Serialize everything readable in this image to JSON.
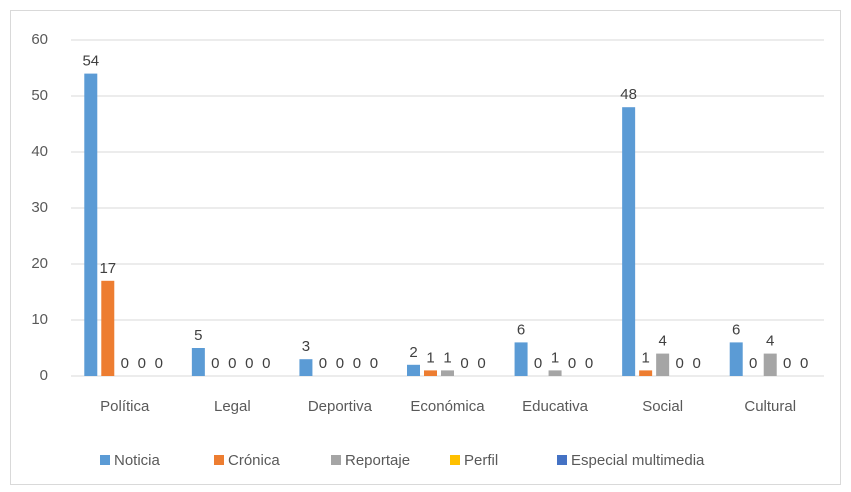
{
  "chart_data": {
    "type": "bar",
    "categories": [
      "Política",
      "Legal",
      "Deportiva",
      "Económica",
      "Educativa",
      "Social",
      "Cultural"
    ],
    "series": [
      {
        "name": "Noticia",
        "color": "#5b9bd5",
        "values": [
          54,
          5,
          3,
          2,
          6,
          48,
          6
        ]
      },
      {
        "name": "Crónica",
        "color": "#ed7d31",
        "values": [
          17,
          0,
          0,
          1,
          0,
          1,
          0
        ]
      },
      {
        "name": "Reportaje",
        "color": "#a5a5a5",
        "values": [
          0,
          0,
          0,
          1,
          1,
          4,
          4
        ]
      },
      {
        "name": "Perfil",
        "color": "#ffc000",
        "values": [
          0,
          0,
          0,
          0,
          0,
          0,
          0
        ]
      },
      {
        "name": "Especial multimedia",
        "color": "#4472c4",
        "values": [
          0,
          0,
          0,
          0,
          0,
          0,
          0
        ]
      }
    ],
    "ylim": [
      0,
      60
    ],
    "yticks": [
      0,
      10,
      20,
      30,
      40,
      50,
      60
    ],
    "grid": true,
    "legend": "bottom"
  }
}
